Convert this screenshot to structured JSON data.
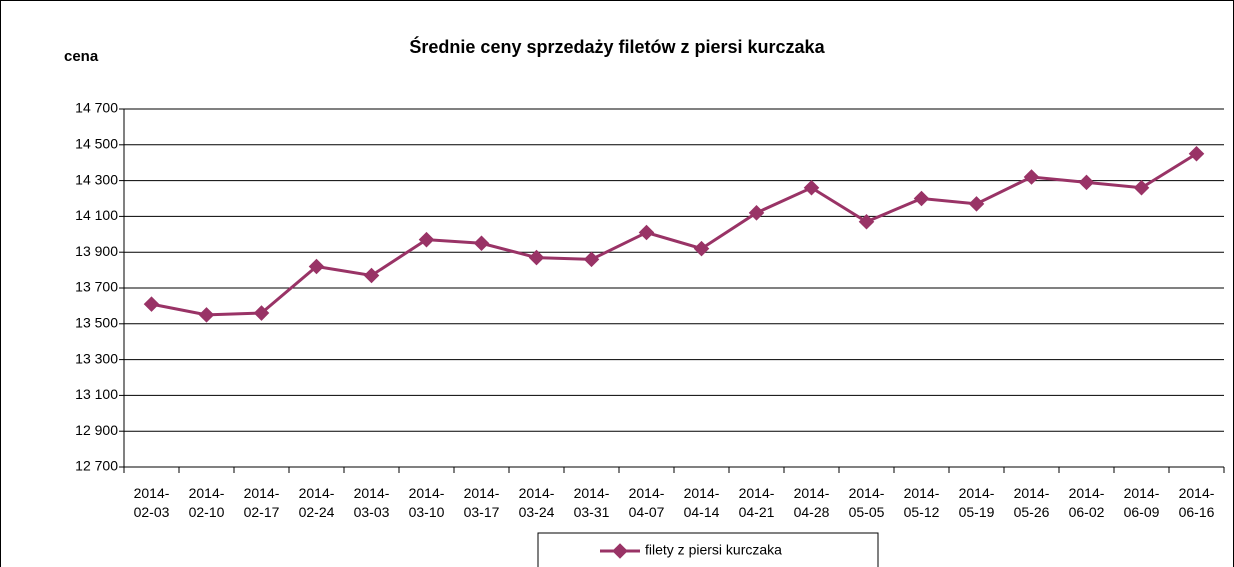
{
  "chart_data": {
    "type": "line",
    "title": "Średnie ceny sprzedaży filetów z piersi kurczaka",
    "y_label": "cena",
    "categories": [
      "2014-02-03",
      "2014-02-10",
      "2014-02-17",
      "2014-02-24",
      "2014-03-03",
      "2014-03-10",
      "2014-03-17",
      "2014-03-24",
      "2014-03-31",
      "2014-04-07",
      "2014-04-14",
      "2014-04-21",
      "2014-04-28",
      "2014-05-05",
      "2014-05-12",
      "2014-05-19",
      "2014-05-26",
      "2014-06-02",
      "2014-06-09",
      "2014-06-16"
    ],
    "series": [
      {
        "name": "filety z piersi kurczaka",
        "color": "#993366",
        "values": [
          13610,
          13550,
          13560,
          13820,
          13770,
          13970,
          13950,
          13870,
          13860,
          14010,
          13920,
          14120,
          14260,
          14070,
          14200,
          14170,
          14320,
          14290,
          14260,
          14450
        ]
      }
    ],
    "ylim": [
      12700,
      14700
    ],
    "yticks": [
      {
        "value": 12700,
        "label": "12 700"
      },
      {
        "value": 12900,
        "label": "12 900"
      },
      {
        "value": 13100,
        "label": "13 100"
      },
      {
        "value": 13300,
        "label": "13 300"
      },
      {
        "value": 13500,
        "label": "13 500"
      },
      {
        "value": 13700,
        "label": "13 700"
      },
      {
        "value": 13900,
        "label": "13 900"
      },
      {
        "value": 14100,
        "label": "14 100"
      },
      {
        "value": 14300,
        "label": "14 300"
      },
      {
        "value": 14500,
        "label": "14 500"
      },
      {
        "value": 14700,
        "label": "14 700"
      }
    ],
    "grid": true,
    "legend": "bottom"
  }
}
